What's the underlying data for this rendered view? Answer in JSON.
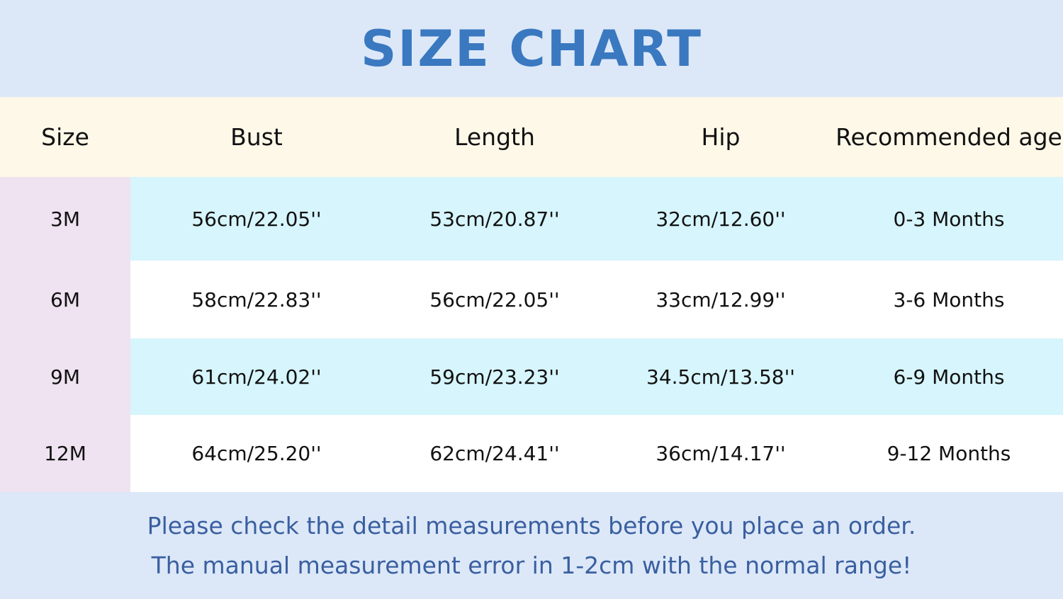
{
  "title": "SIZE CHART",
  "headers": [
    "Size",
    "Bust",
    "Length",
    "Hip",
    "Recommended age"
  ],
  "rows": [
    [
      "3M",
      "56cm/22.05''",
      "53cm/20.87''",
      "32cm/12.60''",
      "0-3 Months"
    ],
    [
      "6M",
      "58cm/22.83''",
      "56cm/22.05''",
      "33cm/12.99''",
      "3-6 Months"
    ],
    [
      "9M",
      "61cm/24.02''",
      "59cm/23.23''",
      "34.5cm/13.58''",
      "6-9 Months"
    ],
    [
      "12M",
      "64cm/25.20''",
      "62cm/24.41''",
      "36cm/14.17''",
      "9-12 Months"
    ]
  ],
  "footer": [
    "Please check the detail measurements before you place an order.",
    "The manual measurement error in 1-2cm with the normal range!"
  ],
  "colors": {
    "title": "#3a78c0",
    "header_bg": "#fdf8e8",
    "size_col_bg": "#efe2f1",
    "row_alt_bg": "#d6f5fc",
    "band_bg": "#dce8f8",
    "footer_text": "#3a5fa0"
  }
}
